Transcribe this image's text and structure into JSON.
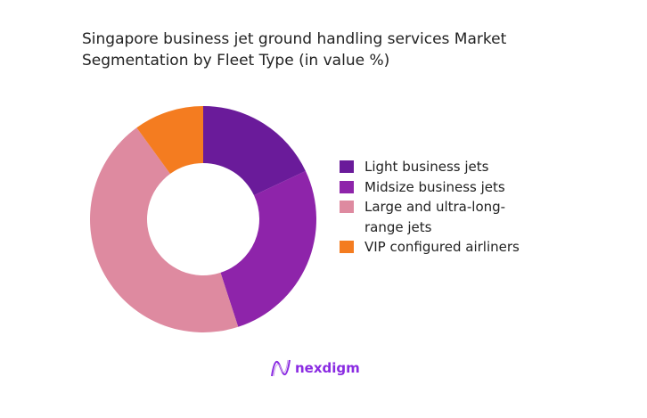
{
  "chart_data": {
    "type": "pie",
    "title": "Singapore business jet ground handling services Market Segmentation by Fleet Type (in value %)",
    "categories": [
      "Light business jets",
      "Midsize business jets",
      "Large and ultra-long-range jets",
      "VIP configured airliners"
    ],
    "values": [
      18,
      27,
      45,
      10
    ],
    "colors": [
      "#6a1b9a",
      "#8e24aa",
      "#de8aa0",
      "#f47c20"
    ],
    "donut": true,
    "legend_position": "right"
  },
  "brand": {
    "name": "nexdigm",
    "color": "#8a2be2"
  }
}
